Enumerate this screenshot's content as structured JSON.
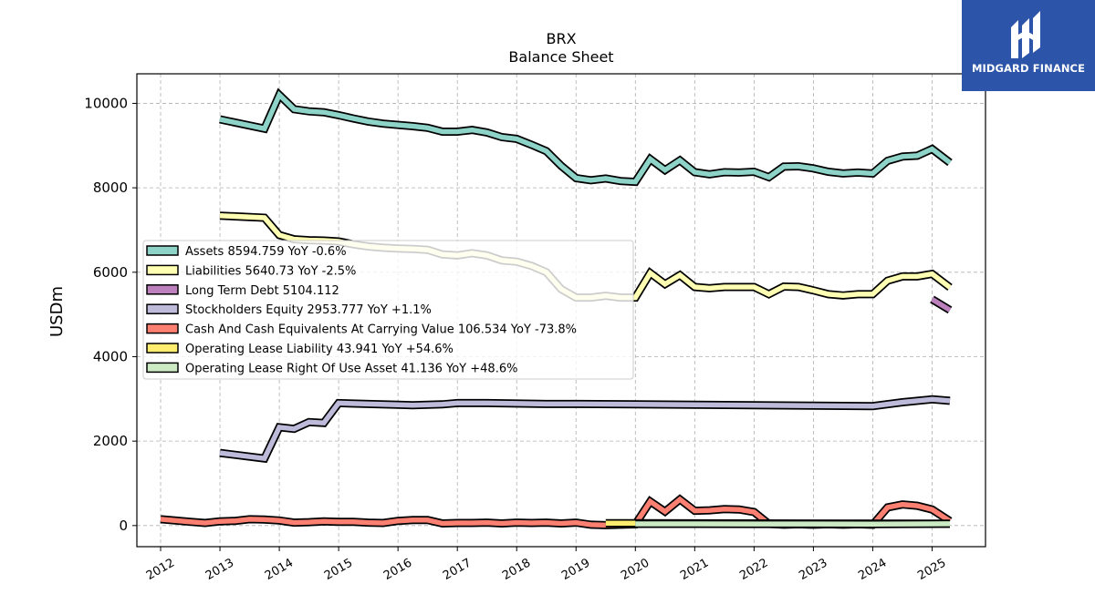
{
  "brand": {
    "name": "MIDGARD FINANCE",
    "logo_icon": "midgard-logo-icon",
    "bg_color": "#2c55a9"
  },
  "chart_data": {
    "type": "line",
    "title": "BRX",
    "subtitle": "Balance  Sheet",
    "ylabel": "USDm",
    "xlabel": "",
    "ylim": [
      -500,
      10700
    ],
    "xlim": [
      2011.6,
      2025.9
    ],
    "yticks": [
      0,
      2000,
      4000,
      6000,
      8000,
      10000
    ],
    "xticks": [
      "2012",
      "2013",
      "2014",
      "2015",
      "2016",
      "2017",
      "2018",
      "2019",
      "2020",
      "2021",
      "2022",
      "2023",
      "2024",
      "2025"
    ],
    "grid": true,
    "legend_position": "center-left",
    "series": [
      {
        "name": "Assets",
        "legend": "Assets  8594.759 YoY -0.6%",
        "color": "#8dd3c7",
        "x": [
          2013.0,
          2013.75,
          2014.0,
          2014.25,
          2014.5,
          2014.75,
          2015.0,
          2015.25,
          2015.5,
          2015.75,
          2016.0,
          2016.25,
          2016.5,
          2016.75,
          2017.0,
          2017.25,
          2017.5,
          2017.75,
          2018.0,
          2018.25,
          2018.5,
          2018.75,
          2019.0,
          2019.25,
          2019.5,
          2019.75,
          2020.0,
          2020.25,
          2020.5,
          2020.75,
          2021.0,
          2021.25,
          2021.5,
          2021.75,
          2022.0,
          2022.25,
          2022.5,
          2022.75,
          2023.0,
          2023.25,
          2023.5,
          2023.75,
          2024.0,
          2024.25,
          2024.5,
          2024.75,
          2025.0,
          2025.3
        ],
        "values": [
          9620,
          9400,
          10200,
          9860,
          9810,
          9790,
          9720,
          9640,
          9570,
          9520,
          9490,
          9460,
          9420,
          9330,
          9330,
          9370,
          9310,
          9200,
          9160,
          9020,
          8870,
          8520,
          8230,
          8180,
          8220,
          8160,
          8140,
          8680,
          8420,
          8650,
          8370,
          8320,
          8370,
          8360,
          8380,
          8250,
          8500,
          8510,
          8460,
          8380,
          8340,
          8360,
          8340,
          8640,
          8740,
          8760,
          8920,
          8595
        ]
      },
      {
        "name": "Liabilities",
        "legend": "Liabilities  5640.73 YoY -2.5%",
        "color": "#ffffb3",
        "x": [
          2013.0,
          2013.75,
          2014.0,
          2014.25,
          2014.5,
          2014.75,
          2015.0,
          2015.25,
          2015.5,
          2015.75,
          2016.0,
          2016.25,
          2016.5,
          2016.75,
          2017.0,
          2017.25,
          2017.5,
          2017.75,
          2018.0,
          2018.25,
          2018.5,
          2018.75,
          2019.0,
          2019.25,
          2019.5,
          2019.75,
          2020.0,
          2020.25,
          2020.5,
          2020.75,
          2021.0,
          2021.25,
          2021.5,
          2021.75,
          2022.0,
          2022.25,
          2022.5,
          2022.75,
          2023.0,
          2023.25,
          2023.5,
          2023.75,
          2024.0,
          2024.25,
          2024.5,
          2024.75,
          2025.0,
          2025.3
        ],
        "values": [
          7340,
          7290,
          6880,
          6780,
          6760,
          6750,
          6730,
          6660,
          6610,
          6580,
          6560,
          6550,
          6530,
          6420,
          6400,
          6450,
          6400,
          6280,
          6250,
          6150,
          6000,
          5600,
          5400,
          5400,
          5440,
          5400,
          5400,
          5980,
          5720,
          5930,
          5650,
          5620,
          5650,
          5650,
          5650,
          5480,
          5660,
          5650,
          5570,
          5480,
          5450,
          5480,
          5480,
          5800,
          5900,
          5900,
          5960,
          5641
        ]
      },
      {
        "name": "Long Term Debt",
        "legend": "Long Term Debt  5104.112",
        "color": "#bc80bd",
        "x": [
          2025.0,
          2025.3
        ],
        "values": [
          5360,
          5104
        ]
      },
      {
        "name": "Stockholders Equity",
        "legend": "Stockholders Equity  2953.777 YoY +1.1%",
        "color": "#bebada",
        "x": [
          2013.0,
          2013.75,
          2014.0,
          2014.25,
          2014.5,
          2014.75,
          2015.0,
          2015.5,
          2016.0,
          2016.25,
          2016.75,
          2017.0,
          2017.5,
          2018.0,
          2018.5,
          2019.0,
          2020.0,
          2021.0,
          2022.0,
          2023.0,
          2024.0,
          2024.5,
          2025.0,
          2025.3
        ],
        "values": [
          1720,
          1590,
          2330,
          2290,
          2450,
          2430,
          2900,
          2880,
          2860,
          2850,
          2870,
          2900,
          2900,
          2890,
          2880,
          2880,
          2870,
          2860,
          2850,
          2840,
          2830,
          2920,
          2990,
          2954
        ]
      },
      {
        "name": "Cash And Cash Equivalents At Carrying Value",
        "legend": "Cash And Cash Equivalents At Carrying Value  106.534 YoY -73.8%",
        "color": "#fb8072",
        "x": [
          2012.0,
          2012.5,
          2012.75,
          2013.0,
          2013.25,
          2013.5,
          2013.75,
          2014.0,
          2014.25,
          2014.5,
          2014.75,
          2015.0,
          2015.25,
          2015.5,
          2015.75,
          2016.0,
          2016.25,
          2016.5,
          2016.75,
          2017.0,
          2017.25,
          2017.5,
          2017.75,
          2018.0,
          2018.25,
          2018.5,
          2018.75,
          2019.0,
          2019.25,
          2019.5,
          2019.75,
          2020.0,
          2020.25,
          2020.5,
          2020.75,
          2021.0,
          2021.25,
          2021.5,
          2021.75,
          2022.0,
          2022.25,
          2022.5,
          2022.75,
          2023.0,
          2023.25,
          2023.5,
          2023.75,
          2024.0,
          2024.25,
          2024.5,
          2024.75,
          2025.0,
          2025.3
        ],
        "values": [
          150,
          90,
          60,
          100,
          110,
          150,
          140,
          120,
          70,
          80,
          100,
          90,
          90,
          70,
          60,
          110,
          130,
          130,
          50,
          60,
          60,
          70,
          50,
          70,
          60,
          70,
          50,
          70,
          20,
          10,
          20,
          30,
          570,
          330,
          620,
          350,
          360,
          390,
          380,
          320,
          40,
          20,
          30,
          20,
          30,
          20,
          30,
          20,
          430,
          500,
          470,
          380,
          107
        ]
      },
      {
        "name": "Operating Lease Liability",
        "legend": "Operating Lease Liability  43.941 YoY +54.6%",
        "color": "#ffed6f",
        "x": [
          2019.5,
          2020.0,
          2025.3
        ],
        "values": [
          55,
          55,
          44
        ]
      },
      {
        "name": "Operating Lease Right Of Use Asset",
        "legend": "Operating Lease Right Of Use Asset  41.136 YoY +48.6%",
        "color": "#ccebc5",
        "x": [
          2020.0,
          2021.0,
          2022.0,
          2023.0,
          2024.0,
          2025.3
        ],
        "values": [
          40,
          40,
          38,
          38,
          36,
          41
        ]
      }
    ]
  }
}
